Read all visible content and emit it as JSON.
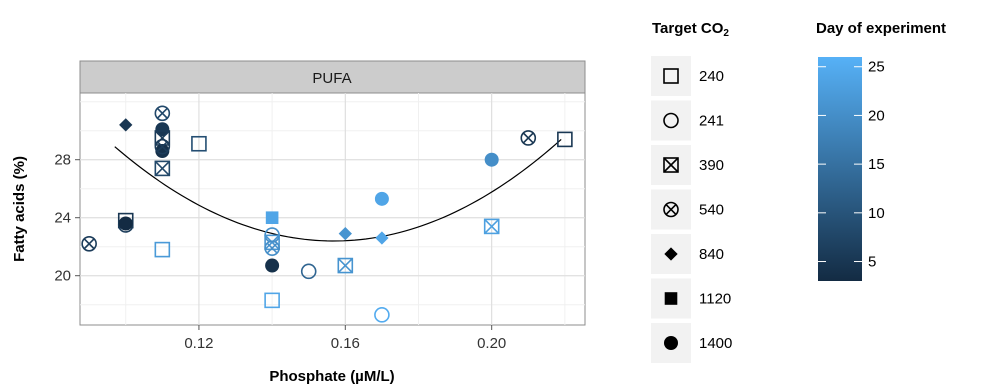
{
  "chart_data": {
    "type": "scatter",
    "facet_label": "PUFA",
    "xlabel": "Phosphate (µM/L)",
    "ylabel": "Fatty acids (%)",
    "xlim": [
      0.0875,
      0.2255
    ],
    "ylim": [
      16.6,
      32.6
    ],
    "x_ticks": [
      0.12,
      0.16,
      0.2
    ],
    "x_tick_labels": [
      "0.12",
      "0.16",
      "0.20"
    ],
    "y_ticks": [
      20,
      24,
      28
    ],
    "y_tick_labels": [
      "20",
      "24",
      "28"
    ],
    "grid": true,
    "legend_placement": "right",
    "shape_legend": {
      "title_main": "Target CO",
      "title_sub": "2",
      "entries": [
        {
          "label": "240",
          "shape": "square-open"
        },
        {
          "label": "241",
          "shape": "circle-open"
        },
        {
          "label": "390",
          "shape": "square-cross"
        },
        {
          "label": "540",
          "shape": "circle-cross"
        },
        {
          "label": "840",
          "shape": "diamond"
        },
        {
          "label": "1120",
          "shape": "square"
        },
        {
          "label": "1400",
          "shape": "circle"
        }
      ]
    },
    "color_legend": {
      "title": "Day of experiment",
      "min": 3,
      "max": 26,
      "ticks": [
        5,
        10,
        15,
        20,
        25
      ],
      "color_low": "#132b43",
      "color_high": "#56b1f7"
    },
    "fit_curve": {
      "type": "quadratic",
      "points": [
        [
          0.097,
          28.9
        ],
        [
          0.155,
          22.4
        ],
        [
          0.219,
          29.4
        ]
      ]
    },
    "points": [
      {
        "x": 0.09,
        "y": 22.2,
        "shape": "circle-cross",
        "day": 6
      },
      {
        "x": 0.1,
        "y": 23.8,
        "shape": "square-open",
        "day": 5
      },
      {
        "x": 0.1,
        "y": 23.5,
        "shape": "circle-open",
        "day": 6
      },
      {
        "x": 0.1,
        "y": 23.6,
        "shape": "circle",
        "day": 3
      },
      {
        "x": 0.1,
        "y": 30.4,
        "shape": "diamond",
        "day": 5
      },
      {
        "x": 0.11,
        "y": 31.2,
        "shape": "circle-cross",
        "day": 8
      },
      {
        "x": 0.11,
        "y": 30.1,
        "shape": "circle",
        "day": 5
      },
      {
        "x": 0.11,
        "y": 29.5,
        "shape": "square-cross",
        "day": 6
      },
      {
        "x": 0.11,
        "y": 28.6,
        "shape": "circle",
        "day": 4
      },
      {
        "x": 0.11,
        "y": 28.9,
        "shape": "circle-cross",
        "day": 6
      },
      {
        "x": 0.11,
        "y": 27.4,
        "shape": "square-cross",
        "day": 8
      },
      {
        "x": 0.11,
        "y": 21.8,
        "shape": "square-open",
        "day": 22
      },
      {
        "x": 0.12,
        "y": 29.1,
        "shape": "square-open",
        "day": 9
      },
      {
        "x": 0.14,
        "y": 24.0,
        "shape": "square",
        "day": 24
      },
      {
        "x": 0.14,
        "y": 22.8,
        "shape": "circle-open",
        "day": 20
      },
      {
        "x": 0.14,
        "y": 22.3,
        "shape": "square-cross",
        "day": 21
      },
      {
        "x": 0.14,
        "y": 21.9,
        "shape": "circle-cross",
        "day": 20
      },
      {
        "x": 0.14,
        "y": 20.7,
        "shape": "circle",
        "day": 4
      },
      {
        "x": 0.14,
        "y": 18.3,
        "shape": "square-open",
        "day": 24
      },
      {
        "x": 0.15,
        "y": 20.3,
        "shape": "circle-open",
        "day": 13
      },
      {
        "x": 0.16,
        "y": 22.9,
        "shape": "diamond",
        "day": 21
      },
      {
        "x": 0.16,
        "y": 20.7,
        "shape": "square-cross",
        "day": 21
      },
      {
        "x": 0.17,
        "y": 25.3,
        "shape": "circle",
        "day": 24
      },
      {
        "x": 0.17,
        "y": 22.6,
        "shape": "diamond",
        "day": 24
      },
      {
        "x": 0.17,
        "y": 17.3,
        "shape": "circle-open",
        "day": 25
      },
      {
        "x": 0.2,
        "y": 28.0,
        "shape": "circle",
        "day": 20
      },
      {
        "x": 0.2,
        "y": 23.4,
        "shape": "square-cross",
        "day": 23
      },
      {
        "x": 0.21,
        "y": 29.5,
        "shape": "circle-cross",
        "day": 5
      },
      {
        "x": 0.22,
        "y": 29.4,
        "shape": "square-open",
        "day": 5
      }
    ]
  }
}
